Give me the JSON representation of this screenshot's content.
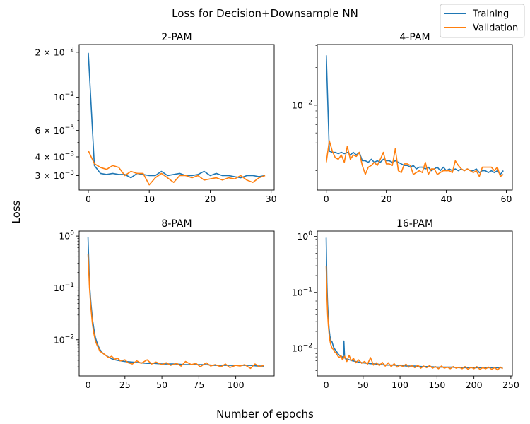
{
  "figure": {
    "suptitle": "Loss for Decision+Downsample NN",
    "supxlabel": "Number of epochs",
    "supylabel": "Loss",
    "legend": {
      "placement": "top-right",
      "entries": [
        {
          "label": "Training",
          "color": "#1f77b4"
        },
        {
          "label": "Validation",
          "color": "#ff7f0e"
        }
      ]
    }
  },
  "chart_data": [
    {
      "type": "line",
      "title": "2-PAM",
      "xlabel": "",
      "ylabel": "",
      "yscale": "log",
      "xlim": [
        -1.5,
        30.5
      ],
      "ylim": [
        0.0024,
        0.0225
      ],
      "xticks": [
        0,
        10,
        20,
        30
      ],
      "xtick_labels": [
        "0",
        "10",
        "20",
        "30"
      ],
      "yticks": [
        0.02,
        0.01,
        0.006,
        0.004,
        0.003
      ],
      "ytick_labels": [
        {
          "base": "2 × 10",
          "exp": "−2"
        },
        {
          "base": "10",
          "exp": "−2"
        },
        {
          "base": "6 × 10",
          "exp": "−3"
        },
        {
          "base": "4 × 10",
          "exp": "−3"
        },
        {
          "base": "3 × 10",
          "exp": "−3"
        }
      ],
      "grid": false,
      "series": [
        {
          "name": "Training",
          "color": "#1f77b4",
          "x": [
            0,
            1,
            2,
            3,
            4,
            5,
            6,
            7,
            8,
            9,
            10,
            11,
            12,
            13,
            14,
            15,
            16,
            17,
            18,
            19,
            20,
            21,
            22,
            23,
            24,
            25,
            26,
            27,
            28,
            29
          ],
          "y": [
            0.0198,
            0.0035,
            0.0031,
            0.00305,
            0.0031,
            0.00305,
            0.00305,
            0.0029,
            0.0031,
            0.00305,
            0.003,
            0.003,
            0.0032,
            0.003,
            0.00305,
            0.0031,
            0.003,
            0.003,
            0.00305,
            0.0032,
            0.003,
            0.0031,
            0.003,
            0.003,
            0.00295,
            0.0029,
            0.003,
            0.003,
            0.00295,
            0.003
          ]
        },
        {
          "name": "Validation",
          "color": "#ff7f0e",
          "x": [
            0,
            1,
            2,
            3,
            4,
            5,
            6,
            7,
            8,
            9,
            10,
            11,
            12,
            13,
            14,
            15,
            16,
            17,
            18,
            19,
            20,
            21,
            22,
            23,
            24,
            25,
            26,
            27,
            28,
            29
          ],
          "y": [
            0.0044,
            0.0036,
            0.0034,
            0.0033,
            0.0035,
            0.0034,
            0.003,
            0.0032,
            0.0031,
            0.0031,
            0.0026,
            0.0029,
            0.0031,
            0.0029,
            0.0027,
            0.003,
            0.003,
            0.0029,
            0.003,
            0.0028,
            0.00285,
            0.0029,
            0.0028,
            0.0029,
            0.00285,
            0.003,
            0.0028,
            0.0027,
            0.0029,
            0.003
          ]
        }
      ]
    },
    {
      "type": "line",
      "title": "4-PAM",
      "xlabel": "",
      "ylabel": "",
      "yscale": "log",
      "xlim": [
        -3,
        62
      ],
      "ylim": [
        0.0021,
        0.0305
      ],
      "xticks": [
        0,
        20,
        40,
        60
      ],
      "xtick_labels": [
        "0",
        "20",
        "40",
        "60"
      ],
      "yticks": [
        0.01
      ],
      "ytick_labels": [
        {
          "base": "10",
          "exp": "−2"
        }
      ],
      "grid": false,
      "series": [
        {
          "name": "Training",
          "color": "#1f77b4",
          "x": [
            0,
            1,
            2,
            3,
            4,
            5,
            6,
            7,
            8,
            9,
            10,
            11,
            12,
            13,
            14,
            15,
            16,
            17,
            18,
            19,
            20,
            21,
            22,
            23,
            24,
            25,
            26,
            27,
            28,
            29,
            30,
            31,
            32,
            33,
            34,
            35,
            36,
            37,
            38,
            39,
            40,
            41,
            42,
            43,
            44,
            45,
            46,
            47,
            48,
            49,
            50,
            51,
            52,
            53,
            54,
            55,
            56,
            57,
            58,
            59
          ],
          "y": [
            0.025,
            0.0043,
            0.0042,
            0.0042,
            0.0041,
            0.0042,
            0.0041,
            0.0042,
            0.004,
            0.0042,
            0.004,
            0.0042,
            0.0036,
            0.0036,
            0.0035,
            0.0037,
            0.0035,
            0.0036,
            0.0035,
            0.0037,
            0.0036,
            0.0036,
            0.0035,
            0.0036,
            0.0035,
            0.0034,
            0.0033,
            0.0033,
            0.0032,
            0.0033,
            0.0031,
            0.0032,
            0.0032,
            0.0031,
            0.0032,
            0.003,
            0.0031,
            0.0032,
            0.003,
            0.0032,
            0.003,
            0.0031,
            0.003,
            0.0031,
            0.003,
            0.0031,
            0.003,
            0.0031,
            0.003,
            0.003,
            0.0031,
            0.0029,
            0.003,
            0.003,
            0.0029,
            0.003,
            0.0029,
            0.003,
            0.0028,
            0.003
          ]
        },
        {
          "name": "Validation",
          "color": "#ff7f0e",
          "x": [
            0,
            1,
            2,
            3,
            4,
            5,
            6,
            7,
            8,
            9,
            10,
            11,
            12,
            13,
            14,
            15,
            16,
            17,
            18,
            19,
            20,
            21,
            22,
            23,
            24,
            25,
            26,
            27,
            28,
            29,
            30,
            31,
            32,
            33,
            34,
            35,
            36,
            37,
            38,
            39,
            40,
            41,
            42,
            43,
            44,
            45,
            46,
            47,
            48,
            49,
            50,
            51,
            52,
            53,
            54,
            55,
            56,
            57,
            58,
            59
          ],
          "y": [
            0.0035,
            0.0052,
            0.0043,
            0.0038,
            0.0037,
            0.004,
            0.0035,
            0.0047,
            0.0037,
            0.004,
            0.0039,
            0.0042,
            0.0033,
            0.0028,
            0.0032,
            0.0033,
            0.0035,
            0.0033,
            0.0037,
            0.0042,
            0.0034,
            0.0034,
            0.0033,
            0.0045,
            0.003,
            0.0029,
            0.0034,
            0.0034,
            0.0033,
            0.0028,
            0.0029,
            0.003,
            0.0029,
            0.0035,
            0.0028,
            0.0031,
            0.0031,
            0.0028,
            0.0029,
            0.003,
            0.003,
            0.003,
            0.0029,
            0.0036,
            0.0033,
            0.0031,
            0.003,
            0.0031,
            0.003,
            0.0029,
            0.003,
            0.0027,
            0.0032,
            0.0032,
            0.0032,
            0.0032,
            0.003,
            0.0032,
            0.0027,
            0.0028
          ]
        }
      ]
    },
    {
      "type": "line",
      "title": "8-PAM",
      "xlabel": "",
      "ylabel": "",
      "yscale": "log",
      "xlim": [
        -6,
        126
      ],
      "ylim": [
        0.002,
        1.25
      ],
      "xticks": [
        0,
        25,
        50,
        75,
        100
      ],
      "xtick_labels": [
        "0",
        "25",
        "50",
        "75",
        "100"
      ],
      "yticks": [
        1,
        0.1,
        0.01
      ],
      "ytick_labels": [
        {
          "base": "10",
          "exp": "0"
        },
        {
          "base": "10",
          "exp": "−1"
        },
        {
          "base": "10",
          "exp": "−2"
        }
      ],
      "grid": false,
      "series": [
        {
          "name": "Training",
          "color": "#1f77b4",
          "x": [
            0,
            1,
            2,
            3,
            4,
            5,
            6,
            7,
            8,
            10,
            12,
            14,
            16,
            18,
            20,
            22,
            25,
            30,
            35,
            40,
            45,
            50,
            55,
            60,
            65,
            70,
            75,
            80,
            85,
            90,
            95,
            100,
            105,
            110,
            115,
            119
          ],
          "y": [
            0.95,
            0.12,
            0.05,
            0.025,
            0.016,
            0.011,
            0.009,
            0.0075,
            0.0065,
            0.0055,
            0.005,
            0.0046,
            0.0043,
            0.0041,
            0.004,
            0.0039,
            0.0038,
            0.0037,
            0.0036,
            0.0035,
            0.0035,
            0.0034,
            0.0034,
            0.0034,
            0.0033,
            0.0033,
            0.0033,
            0.0033,
            0.0032,
            0.0032,
            0.0032,
            0.0032,
            0.0032,
            0.0032,
            0.0031,
            0.0031
          ]
        },
        {
          "name": "Validation",
          "color": "#ff7f0e",
          "x": [
            0,
            1,
            2,
            3,
            4,
            5,
            6,
            7,
            8,
            10,
            12,
            14,
            16,
            18,
            20,
            22,
            25,
            27,
            30,
            33,
            36,
            40,
            43,
            46,
            50,
            53,
            56,
            60,
            63,
            66,
            70,
            73,
            76,
            80,
            83,
            86,
            90,
            93,
            96,
            100,
            103,
            106,
            110,
            113,
            116,
            119
          ],
          "y": [
            0.45,
            0.1,
            0.04,
            0.02,
            0.013,
            0.0095,
            0.008,
            0.007,
            0.006,
            0.0055,
            0.005,
            0.0045,
            0.0048,
            0.0042,
            0.0044,
            0.0039,
            0.0041,
            0.0036,
            0.0034,
            0.0039,
            0.0035,
            0.0041,
            0.0034,
            0.0037,
            0.0033,
            0.0036,
            0.0032,
            0.0035,
            0.0031,
            0.0038,
            0.0033,
            0.0035,
            0.003,
            0.0036,
            0.0031,
            0.0033,
            0.003,
            0.0034,
            0.0029,
            0.0032,
            0.0031,
            0.0033,
            0.0028,
            0.0034,
            0.003,
            0.0032
          ]
        }
      ]
    },
    {
      "type": "line",
      "title": "16-PAM",
      "xlabel": "",
      "ylabel": "",
      "yscale": "log",
      "xlim": [
        -12,
        252
      ],
      "ylim": [
        0.0032,
        1.25
      ],
      "xticks": [
        0,
        50,
        100,
        150,
        200,
        250
      ],
      "xtick_labels": [
        "0",
        "50",
        "100",
        "150",
        "200",
        "250"
      ],
      "yticks": [
        1,
        0.1,
        0.01
      ],
      "ytick_labels": [
        {
          "base": "10",
          "exp": "0"
        },
        {
          "base": "10",
          "exp": "−1"
        },
        {
          "base": "10",
          "exp": "−2"
        }
      ],
      "grid": false,
      "series": [
        {
          "name": "Training",
          "color": "#1f77b4",
          "x": [
            0,
            1,
            2,
            3,
            4,
            5,
            6,
            8,
            10,
            12,
            14,
            16,
            18,
            20,
            22,
            23,
            24,
            25,
            26,
            30,
            35,
            40,
            50,
            60,
            70,
            80,
            90,
            100,
            110,
            120,
            130,
            140,
            150,
            160,
            170,
            180,
            190,
            200,
            210,
            220,
            230,
            239
          ],
          "y": [
            0.95,
            0.15,
            0.06,
            0.035,
            0.022,
            0.017,
            0.014,
            0.013,
            0.0105,
            0.0095,
            0.0088,
            0.008,
            0.0075,
            0.0072,
            0.007,
            0.0065,
            0.0135,
            0.0068,
            0.0065,
            0.0063,
            0.006,
            0.0058,
            0.0055,
            0.0053,
            0.0052,
            0.005,
            0.005,
            0.0049,
            0.0048,
            0.0048,
            0.0047,
            0.0047,
            0.0046,
            0.0046,
            0.0046,
            0.0045,
            0.0045,
            0.0045,
            0.0045,
            0.0045,
            0.0045,
            0.0045
          ]
        },
        {
          "name": "Validation",
          "color": "#ff7f0e",
          "x": [
            0,
            1,
            2,
            3,
            4,
            5,
            6,
            8,
            10,
            12,
            14,
            16,
            18,
            20,
            22,
            25,
            28,
            31,
            34,
            37,
            40,
            44,
            48,
            52,
            56,
            60,
            64,
            68,
            72,
            76,
            80,
            84,
            88,
            92,
            96,
            100,
            104,
            108,
            112,
            116,
            120,
            124,
            128,
            132,
            136,
            140,
            144,
            148,
            152,
            156,
            160,
            164,
            168,
            172,
            176,
            180,
            184,
            188,
            192,
            196,
            200,
            204,
            208,
            212,
            216,
            220,
            224,
            228,
            232,
            236,
            239
          ],
          "y": [
            0.3,
            0.09,
            0.04,
            0.025,
            0.018,
            0.014,
            0.012,
            0.01,
            0.0095,
            0.0085,
            0.008,
            0.0072,
            0.0068,
            0.0075,
            0.0062,
            0.0072,
            0.0058,
            0.0075,
            0.006,
            0.0066,
            0.0055,
            0.0062,
            0.0054,
            0.0058,
            0.0052,
            0.0068,
            0.005,
            0.0055,
            0.0049,
            0.0056,
            0.0048,
            0.0055,
            0.0047,
            0.0053,
            0.0046,
            0.005,
            0.0047,
            0.0052,
            0.0046,
            0.0049,
            0.0045,
            0.005,
            0.0044,
            0.0048,
            0.0045,
            0.0049,
            0.0044,
            0.0047,
            0.0043,
            0.0048,
            0.0044,
            0.0046,
            0.0043,
            0.0047,
            0.0044,
            0.0046,
            0.0043,
            0.0047,
            0.0042,
            0.0046,
            0.0043,
            0.0047,
            0.0042,
            0.0045,
            0.0043,
            0.0046,
            0.0042,
            0.0045,
            0.0041,
            0.0046,
            0.0043
          ]
        }
      ]
    }
  ]
}
